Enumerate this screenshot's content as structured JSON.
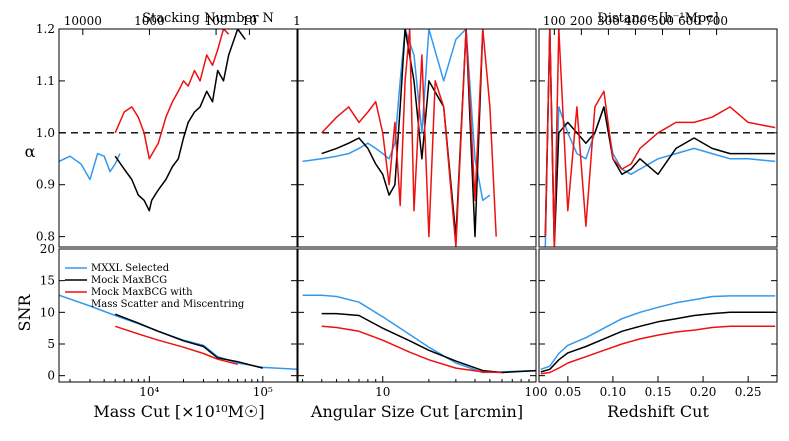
{
  "chart_data": [
    {
      "type": "line",
      "panel": "top-left",
      "top_xlabel": "Stacking Number N",
      "top_xticks": [
        "10000",
        "1000",
        "100",
        "10",
        "1"
      ],
      "ylabel": "α",
      "ylim": [
        0.78,
        1.2
      ],
      "yticks": [
        "0.8",
        "0.9",
        "1.0",
        "1.1",
        "1.2"
      ],
      "reference_line": 1.0,
      "xlim": [
        1600,
        200000
      ],
      "xscale": "log",
      "series": [
        {
          "name": "MXXL Selected",
          "color": "#3399ee",
          "x": [
            1600,
            2000,
            2500,
            3000,
            3500,
            4000,
            4500,
            5000,
            5500
          ],
          "y": [
            0.945,
            0.955,
            0.94,
            0.91,
            0.96,
            0.955,
            0.925,
            0.94,
            0.96
          ]
        },
        {
          "name": "Mock MaxBCG",
          "color": "#000000",
          "x": [
            5000,
            6000,
            7000,
            8000,
            9000,
            10000,
            10500,
            12000,
            14000,
            16000,
            18000,
            20000,
            22000,
            25000,
            28000,
            32000,
            36000,
            40000,
            45000,
            50000,
            60000,
            70000
          ],
          "y": [
            0.955,
            0.93,
            0.91,
            0.88,
            0.87,
            0.85,
            0.87,
            0.89,
            0.91,
            0.935,
            0.95,
            0.99,
            1.02,
            1.04,
            1.05,
            1.08,
            1.06,
            1.12,
            1.1,
            1.15,
            1.2,
            1.18
          ]
        },
        {
          "name": "Mock MaxBCG with Mass Scatter and Miscentring",
          "color": "#ee1111",
          "x": [
            5000,
            6000,
            7000,
            8000,
            9000,
            10000,
            12000,
            14000,
            16000,
            18000,
            20000,
            22000,
            25000,
            28000,
            32000,
            36000,
            40000,
            45000,
            50000
          ],
          "y": [
            1.0,
            1.04,
            1.05,
            1.03,
            1.0,
            0.95,
            0.98,
            1.03,
            1.06,
            1.08,
            1.1,
            1.09,
            1.12,
            1.1,
            1.15,
            1.13,
            1.16,
            1.2,
            1.19
          ]
        }
      ]
    },
    {
      "type": "line",
      "panel": "top-middle",
      "ylim": [
        0.78,
        1.2
      ],
      "reference_line": 1.0,
      "xlim": [
        2.8,
        100
      ],
      "xscale": "log",
      "series": [
        {
          "name": "MXXL Selected",
          "color": "#3399ee",
          "x": [
            3,
            4,
            5,
            6,
            7,
            8,
            9,
            10,
            11,
            12,
            13,
            14,
            16,
            18,
            20,
            25,
            30,
            35,
            40,
            45,
            50
          ],
          "y": [
            0.945,
            0.95,
            0.955,
            0.96,
            0.97,
            0.98,
            0.97,
            0.96,
            0.95,
            0.98,
            1.1,
            1.2,
            1.15,
            1.0,
            1.2,
            1.1,
            1.18,
            1.2,
            0.95,
            0.87,
            0.88
          ]
        },
        {
          "name": "Mock MaxBCG",
          "color": "#000000",
          "x": [
            4,
            5,
            6,
            7,
            8,
            9,
            10,
            11,
            12,
            13,
            14,
            16,
            18,
            20,
            25,
            30,
            35,
            40,
            45
          ],
          "y": [
            0.96,
            0.97,
            0.98,
            0.99,
            0.97,
            0.94,
            0.92,
            0.88,
            0.9,
            1.05,
            1.2,
            1.1,
            0.95,
            1.1,
            1.05,
            0.8,
            1.2,
            0.8,
            1.2
          ]
        },
        {
          "name": "Mock MaxBCG with Mass Scatter and Miscentring",
          "color": "#ee1111",
          "x": [
            4,
            5,
            6,
            7,
            8,
            9,
            10,
            11,
            12,
            13,
            14,
            15,
            16,
            18,
            20,
            22,
            25,
            30,
            35,
            40,
            45,
            50,
            55
          ],
          "y": [
            1.0,
            1.03,
            1.05,
            1.02,
            1.04,
            1.06,
            1.0,
            0.9,
            1.02,
            0.86,
            1.1,
            1.2,
            0.85,
            1.15,
            0.8,
            1.1,
            1.05,
            0.78,
            1.2,
            0.87,
            1.2,
            1.05,
            0.8
          ]
        }
      ]
    },
    {
      "type": "line",
      "panel": "top-right",
      "top_xlabel": "Distance [h⁻¹Mpc]",
      "top_xticks": [
        "100",
        "200",
        "300",
        "400",
        "500",
        "600",
        "700"
      ],
      "ylim": [
        0.78,
        1.2
      ],
      "reference_line": 1.0,
      "xlim": [
        0.018,
        0.282
      ],
      "series": [
        {
          "name": "MXXL Selected",
          "color": "#3399ee",
          "x": [
            0.025,
            0.03,
            0.035,
            0.04,
            0.05,
            0.06,
            0.07,
            0.08,
            0.09,
            0.1,
            0.11,
            0.12,
            0.13,
            0.15,
            0.17,
            0.19,
            0.21,
            0.23,
            0.25,
            0.28
          ],
          "y": [
            0.78,
            1.2,
            0.8,
            1.05,
            1.0,
            0.96,
            0.95,
            1.0,
            1.05,
            0.96,
            0.93,
            0.92,
            0.93,
            0.95,
            0.96,
            0.97,
            0.96,
            0.95,
            0.95,
            0.945
          ]
        },
        {
          "name": "Mock MaxBCG",
          "color": "#000000",
          "x": [
            0.025,
            0.03,
            0.035,
            0.04,
            0.05,
            0.06,
            0.07,
            0.08,
            0.09,
            0.1,
            0.11,
            0.12,
            0.13,
            0.15,
            0.17,
            0.19,
            0.21,
            0.23,
            0.25,
            0.28
          ],
          "y": [
            0.8,
            1.2,
            0.78,
            1.0,
            1.02,
            1.0,
            0.98,
            1.0,
            1.05,
            0.95,
            0.92,
            0.93,
            0.95,
            0.92,
            0.97,
            0.99,
            0.97,
            0.96,
            0.96,
            0.96
          ]
        },
        {
          "name": "Mock MaxBCG with Mass Scatter and Miscentring",
          "color": "#ee1111",
          "x": [
            0.025,
            0.03,
            0.035,
            0.04,
            0.05,
            0.06,
            0.07,
            0.08,
            0.09,
            0.1,
            0.11,
            0.12,
            0.13,
            0.15,
            0.17,
            0.19,
            0.21,
            0.23,
            0.25,
            0.28
          ],
          "y": [
            0.8,
            1.2,
            0.78,
            1.2,
            0.85,
            1.05,
            0.82,
            1.05,
            1.08,
            0.95,
            0.93,
            0.94,
            0.97,
            1.0,
            1.02,
            1.02,
            1.03,
            1.05,
            1.02,
            1.01
          ]
        }
      ]
    },
    {
      "type": "line",
      "panel": "bottom-left",
      "xlabel": "Mass Cut [×10¹⁰M☉]",
      "xticks": [
        "10⁴",
        "10⁵"
      ],
      "ylabel": "SNR",
      "ylim": [
        -1,
        20
      ],
      "yticks": [
        "0",
        "5",
        "10",
        "15",
        "20"
      ],
      "xlim": [
        1600,
        200000
      ],
      "xscale": "log",
      "legend": {
        "position": "upper-left",
        "entries": [
          "MXXL Selected",
          "Mock MaxBCG",
          "Mock MaxBCG with",
          "Mass Scatter and Miscentring"
        ]
      },
      "series": [
        {
          "name": "MXXL Selected",
          "color": "#3399ee",
          "x": [
            1600,
            3000,
            5000,
            8000,
            12000,
            20000,
            30000,
            40000,
            60000,
            100000,
            200000
          ],
          "y": [
            12.7,
            11.0,
            9.5,
            8.2,
            7.0,
            5.6,
            4.8,
            3.0,
            2.0,
            1.3,
            1.0
          ]
        },
        {
          "name": "Mock MaxBCG",
          "color": "#000000",
          "x": [
            5000,
            8000,
            12000,
            20000,
            30000,
            40000,
            60000,
            100000
          ],
          "y": [
            9.7,
            8.3,
            7.0,
            5.5,
            4.6,
            2.8,
            2.2,
            1.2
          ]
        },
        {
          "name": "Mock MaxBCG with Mass Scatter and Miscentring",
          "color": "#ee1111",
          "x": [
            5000,
            8000,
            12000,
            20000,
            30000,
            40000,
            60000
          ],
          "y": [
            7.8,
            6.6,
            5.6,
            4.5,
            3.5,
            2.6,
            1.8
          ]
        }
      ]
    },
    {
      "type": "line",
      "panel": "bottom-middle",
      "xlabel": "Angular Size Cut [arcmin]",
      "xticks": [
        "10",
        "100"
      ],
      "ylim": [
        -1,
        20
      ],
      "xlim": [
        2.8,
        100
      ],
      "xscale": "log",
      "series": [
        {
          "name": "MXXL Selected",
          "color": "#3399ee",
          "x": [
            3,
            4,
            5,
            7,
            10,
            15,
            20,
            30,
            45,
            60,
            100
          ],
          "y": [
            12.7,
            12.7,
            12.5,
            11.6,
            9.3,
            6.5,
            4.5,
            2.0,
            0.5,
            0.6,
            0.8
          ]
        },
        {
          "name": "Mock MaxBCG",
          "color": "#000000",
          "x": [
            4,
            5,
            7,
            10,
            15,
            20,
            30,
            45,
            60,
            100
          ],
          "y": [
            9.8,
            9.8,
            9.5,
            7.5,
            5.5,
            4.0,
            2.3,
            0.8,
            0.5,
            0.8
          ]
        },
        {
          "name": "Mock MaxBCG with Mass Scatter and Miscentring",
          "color": "#ee1111",
          "x": [
            4,
            5,
            7,
            10,
            15,
            20,
            30,
            45,
            60
          ],
          "y": [
            7.8,
            7.6,
            7.0,
            5.6,
            3.7,
            2.5,
            1.2,
            0.6,
            0.5
          ]
        }
      ]
    },
    {
      "type": "line",
      "panel": "bottom-right",
      "xlabel": "Redshift Cut",
      "xticks": [
        "0.05",
        "0.10",
        "0.15",
        "0.20",
        "0.25"
      ],
      "ylim": [
        -1,
        20
      ],
      "xlim": [
        0.018,
        0.282
      ],
      "series": [
        {
          "name": "MXXL Selected",
          "color": "#3399ee",
          "x": [
            0.02,
            0.03,
            0.04,
            0.05,
            0.07,
            0.09,
            0.11,
            0.13,
            0.15,
            0.17,
            0.19,
            0.21,
            0.23,
            0.25,
            0.28
          ],
          "y": [
            1.0,
            1.5,
            3.5,
            4.8,
            6.0,
            7.5,
            9.0,
            10.0,
            10.8,
            11.5,
            12.0,
            12.5,
            12.6,
            12.6,
            12.6
          ]
        },
        {
          "name": "Mock MaxBCG",
          "color": "#000000",
          "x": [
            0.02,
            0.03,
            0.04,
            0.05,
            0.07,
            0.09,
            0.11,
            0.13,
            0.15,
            0.17,
            0.19,
            0.21,
            0.23,
            0.25,
            0.28
          ],
          "y": [
            0.6,
            1.0,
            2.5,
            3.6,
            4.6,
            5.8,
            7.0,
            7.8,
            8.5,
            9.0,
            9.5,
            9.8,
            10.0,
            10.0,
            10.0
          ]
        },
        {
          "name": "Mock MaxBCG with Mass Scatter and Miscentring",
          "color": "#ee1111",
          "x": [
            0.02,
            0.03,
            0.04,
            0.05,
            0.07,
            0.09,
            0.11,
            0.13,
            0.15,
            0.17,
            0.19,
            0.21,
            0.23,
            0.25,
            0.28
          ],
          "y": [
            0.3,
            0.5,
            1.2,
            2.0,
            3.0,
            4.0,
            5.0,
            5.8,
            6.4,
            6.9,
            7.2,
            7.6,
            7.8,
            7.8,
            7.8
          ]
        }
      ]
    }
  ]
}
